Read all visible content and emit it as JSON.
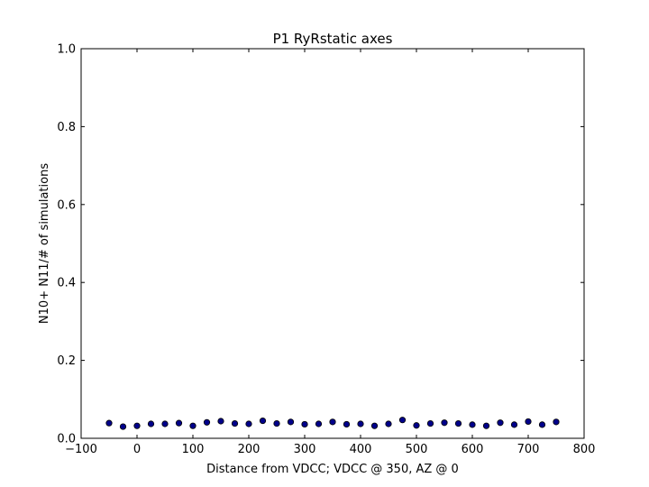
{
  "chart_data": {
    "type": "scatter",
    "title": "P1 RyRstatic axes",
    "xlabel": "Distance from VDCC; VDCC @ 350, AZ @ 0",
    "ylabel": "N10+ N11/# of simulations",
    "xlim": [
      -100,
      800
    ],
    "ylim": [
      0.0,
      1.0
    ],
    "xticks": [
      "−100",
      "0",
      "100",
      "200",
      "300",
      "400",
      "500",
      "600",
      "700",
      "800"
    ],
    "yticks": [
      "0.0",
      "0.2",
      "0.4",
      "0.6",
      "0.8",
      "1.0"
    ],
    "grid": false,
    "marker_color": "#00008b",
    "marker_edge": "#000000",
    "series": [
      {
        "x": [
          -50,
          -25,
          0,
          25,
          50,
          75,
          100,
          125,
          150,
          175,
          200,
          225,
          250,
          275,
          300,
          325,
          350,
          375,
          400,
          425,
          450,
          475,
          500,
          525,
          550,
          575,
          600,
          625,
          650,
          675,
          700,
          725,
          750
        ],
        "y": [
          0.039,
          0.03,
          0.032,
          0.037,
          0.037,
          0.039,
          0.032,
          0.041,
          0.044,
          0.038,
          0.037,
          0.045,
          0.038,
          0.042,
          0.036,
          0.037,
          0.042,
          0.036,
          0.037,
          0.032,
          0.037,
          0.047,
          0.033,
          0.038,
          0.04,
          0.038,
          0.035,
          0.032,
          0.04,
          0.035,
          0.043,
          0.035,
          0.042
        ]
      }
    ]
  }
}
